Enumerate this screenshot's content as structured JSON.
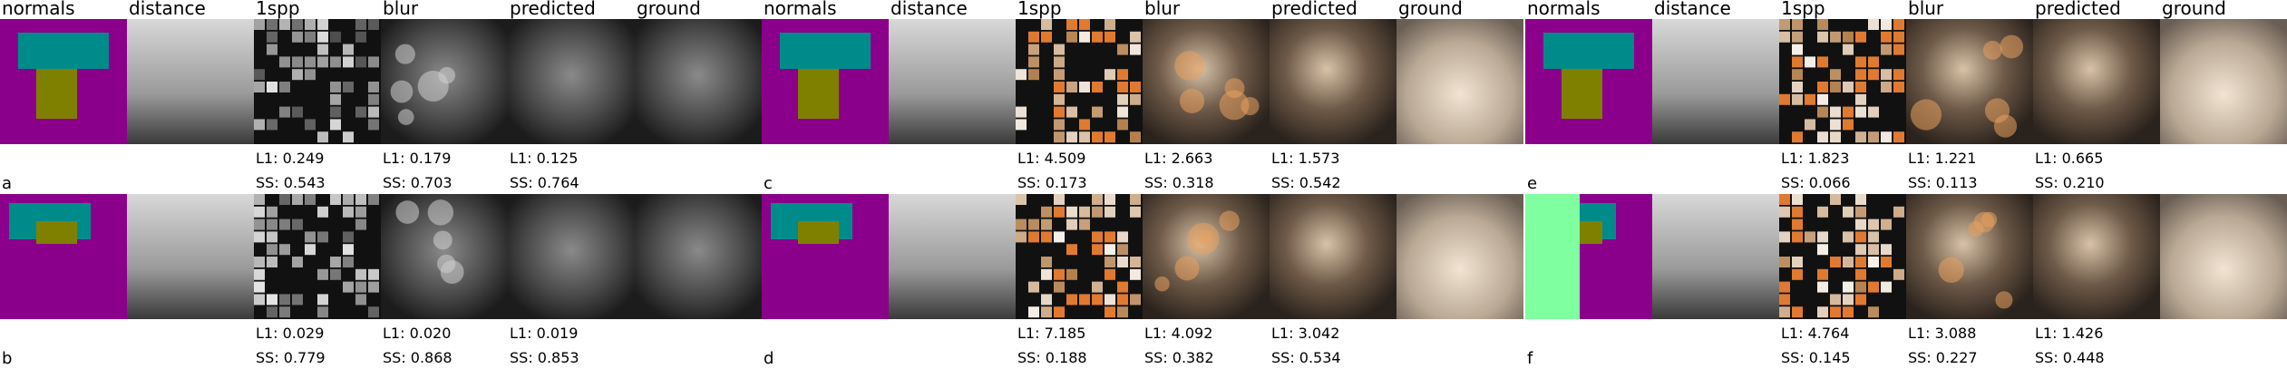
{
  "column_groups": [
    {
      "headers": [
        "normals",
        "distance",
        "1spp",
        "blur",
        "predicted",
        "ground"
      ],
      "panels": [
        {
          "label": "a",
          "metrics": [
            {
              "l1": "L1: 0.249",
              "ss": "SS: 0.543"
            },
            {
              "l1": "L1: 0.179",
              "ss": "SS: 0.703"
            },
            {
              "l1": "L1: 0.125",
              "ss": "SS: 0.764"
            }
          ]
        },
        {
          "label": "b",
          "metrics": [
            {
              "l1": "L1: 0.029",
              "ss": "SS: 0.779"
            },
            {
              "l1": "L1: 0.020",
              "ss": "SS: 0.868"
            },
            {
              "l1": "L1: 0.019",
              "ss": "SS: 0.853"
            }
          ]
        }
      ]
    },
    {
      "headers": [
        "normals",
        "distance",
        "1spp",
        "blur",
        "predicted",
        "ground"
      ],
      "panels": [
        {
          "label": "c",
          "metrics": [
            {
              "l1": "L1: 4.509",
              "ss": "SS: 0.173"
            },
            {
              "l1": "L1: 2.663",
              "ss": "SS: 0.318"
            },
            {
              "l1": "L1: 1.573",
              "ss": "SS: 0.542"
            }
          ]
        },
        {
          "label": "d",
          "metrics": [
            {
              "l1": "L1: 7.185",
              "ss": "SS: 0.188"
            },
            {
              "l1": "L1: 4.092",
              "ss": "SS: 0.382"
            },
            {
              "l1": "L1: 3.042",
              "ss": "SS: 0.534"
            }
          ]
        }
      ]
    },
    {
      "headers": [
        "normals",
        "distance",
        "1spp",
        "blur",
        "predicted",
        "ground"
      ],
      "panels": [
        {
          "label": "e",
          "metrics": [
            {
              "l1": "L1: 1.823",
              "ss": "SS: 0.066"
            },
            {
              "l1": "L1: 1.221",
              "ss": "SS: 0.113"
            },
            {
              "l1": "L1: 0.665",
              "ss": "SS: 0.210"
            }
          ]
        },
        {
          "label": "f",
          "metrics": [
            {
              "l1": "L1: 4.764",
              "ss": "SS: 0.145"
            },
            {
              "l1": "L1: 3.088",
              "ss": "SS: 0.227"
            },
            {
              "l1": "L1: 1.426",
              "ss": "SS: 0.448"
            }
          ]
        }
      ]
    }
  ]
}
